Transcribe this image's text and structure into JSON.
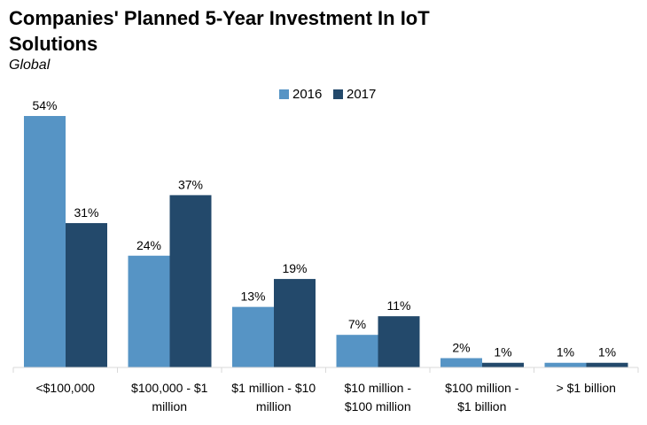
{
  "header": {
    "title": "Companies' Planned 5-Year Investment In IoT Solutions",
    "subtitle": "Global"
  },
  "colors": {
    "series_2016": "#5694c5",
    "series_2017": "#23496b",
    "axis": "#d9d9d9"
  },
  "chart_data": {
    "type": "bar",
    "title": "Companies' Planned 5-Year Investment In IoT Solutions",
    "subtitle": "Global",
    "categories": [
      [
        "<$100,000"
      ],
      [
        "$100,000 - $1",
        "million"
      ],
      [
        "$1 million - $10",
        "million"
      ],
      [
        "$10 million -",
        "$100 million"
      ],
      [
        "$100 million -",
        "$1 billion"
      ],
      [
        "> $1 billion"
      ]
    ],
    "series": [
      {
        "name": "2016",
        "values": [
          54,
          24,
          13,
          7,
          2,
          1
        ],
        "labels": [
          "54%",
          "24%",
          "13%",
          "7%",
          "2%",
          "1%"
        ]
      },
      {
        "name": "2017",
        "values": [
          31,
          37,
          19,
          11,
          1,
          1
        ],
        "labels": [
          "31%",
          "37%",
          "19%",
          "11%",
          "1%",
          "1%"
        ]
      }
    ],
    "ylim": [
      0,
      54
    ],
    "unit": "%",
    "xlabel": "",
    "ylabel": "",
    "grid": false,
    "legend": "top-center"
  }
}
